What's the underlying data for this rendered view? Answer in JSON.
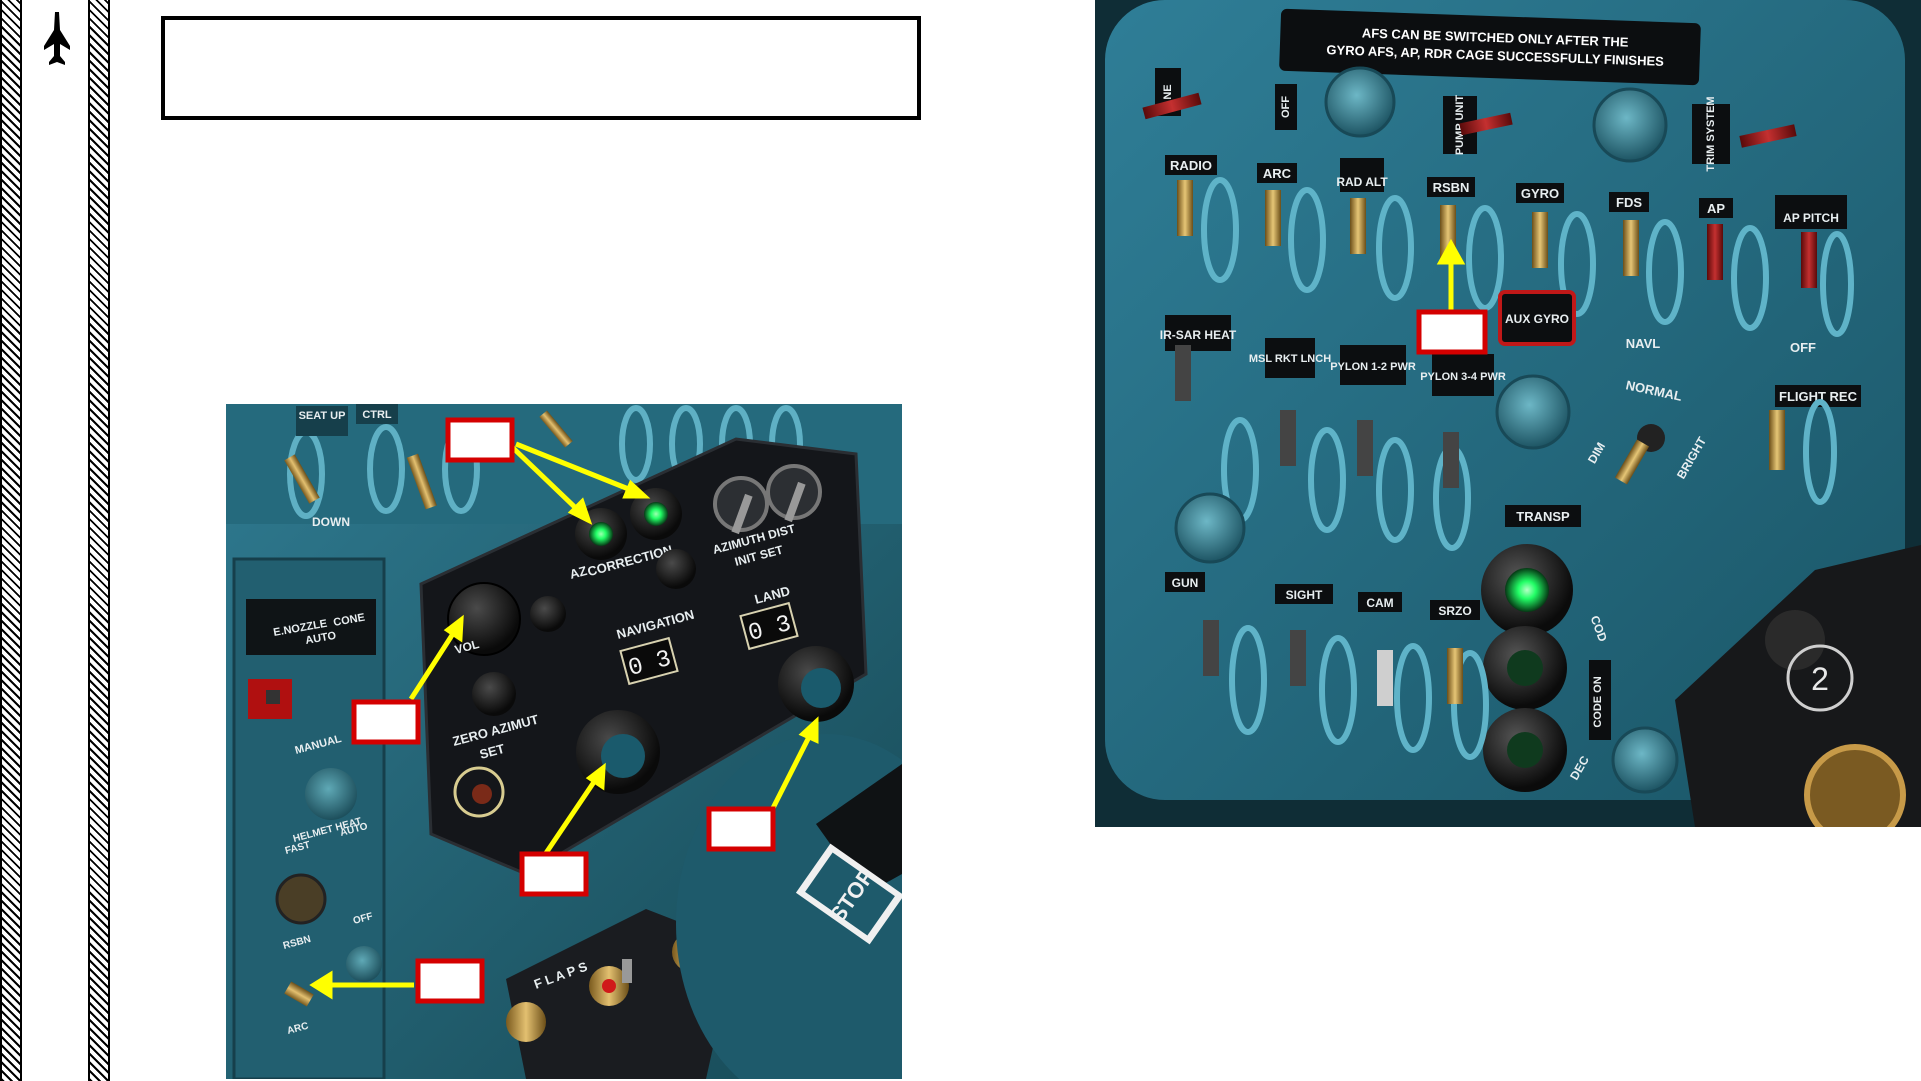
{
  "page": {
    "title": ""
  },
  "icons": {
    "sidebar": "jet-aircraft-icon"
  },
  "colors": {
    "callout_border": "#d40000",
    "arrow": "#ffff00",
    "panel_blue": "#2a6f86",
    "panel_black": "#14161a",
    "switch_brass": "#c9a24a",
    "indicator_green": "#22ff66"
  },
  "left_photo": {
    "labels": {
      "seat_up": "SEAT UP",
      "ctrl": "CTRL",
      "down": "DOWN",
      "e_nozzle": "E.NOZZLE",
      "cone": "CONE",
      "auto": "AUTO",
      "manual": "MANUAL",
      "helmet_heat": "HELMET HEAT",
      "fast": "FAST",
      "heat_auto": "AUTO",
      "rsbn": "RSBN",
      "off": "OFF",
      "arc": "ARC",
      "correction": "CORRECTION",
      "az": "AZ",
      "azimuth_dist": "AZIMUTH DIST",
      "init_set": "INIT SET",
      "navigation": "NAVIGATION",
      "nav_counter": "0 3",
      "land": "LAND",
      "land_counter": "0 3",
      "vol": "VOL",
      "zero_azimut": "ZERO AZIMUT",
      "set": "SET",
      "flaps": "F L A P S",
      "stop": "STOP"
    }
  },
  "right_photo": {
    "placard_line1": "AFS CAN BE SWITCHED ONLY AFTER THE",
    "placard_line2": "GYRO AFS, AP, RDR CAGE SUCCESSFULLY FINISHES",
    "labels": {
      "ne": "NE",
      "off_top": "OFF",
      "pump_unit": "PUMP UNIT",
      "trim_system": "TRIM SYSTEM",
      "radio": "RADIO",
      "arc": "ARC",
      "rad_alt": "RAD ALT",
      "rsbn": "RSBN",
      "gyro": "GYRO",
      "fds": "FDS",
      "ap": "AP",
      "ap_pitch": "AP PITCH",
      "ir_sar_heat": "IR-SAR HEAT",
      "msl_rkt_lnch": "MSL RKT LNCH",
      "pylon_12_pwr": "PYLON 1-2 PWR",
      "pylon_34_pwr": "PYLON 3-4 PWR",
      "aux_gyro": "AUX GYRO",
      "navl": "NAVL",
      "off_right": "OFF",
      "normal": "NORMAL",
      "bright": "BRIGHT",
      "dim": "DIM",
      "flight_rec": "FLIGHT REC",
      "transp": "TRANSP",
      "gun": "GUN",
      "sight": "SIGHT",
      "cam": "CAM",
      "srzo": "SRZO",
      "cod": "COD",
      "code_on": "CODE ON",
      "dec": "DEC",
      "panel_number": "2"
    }
  }
}
